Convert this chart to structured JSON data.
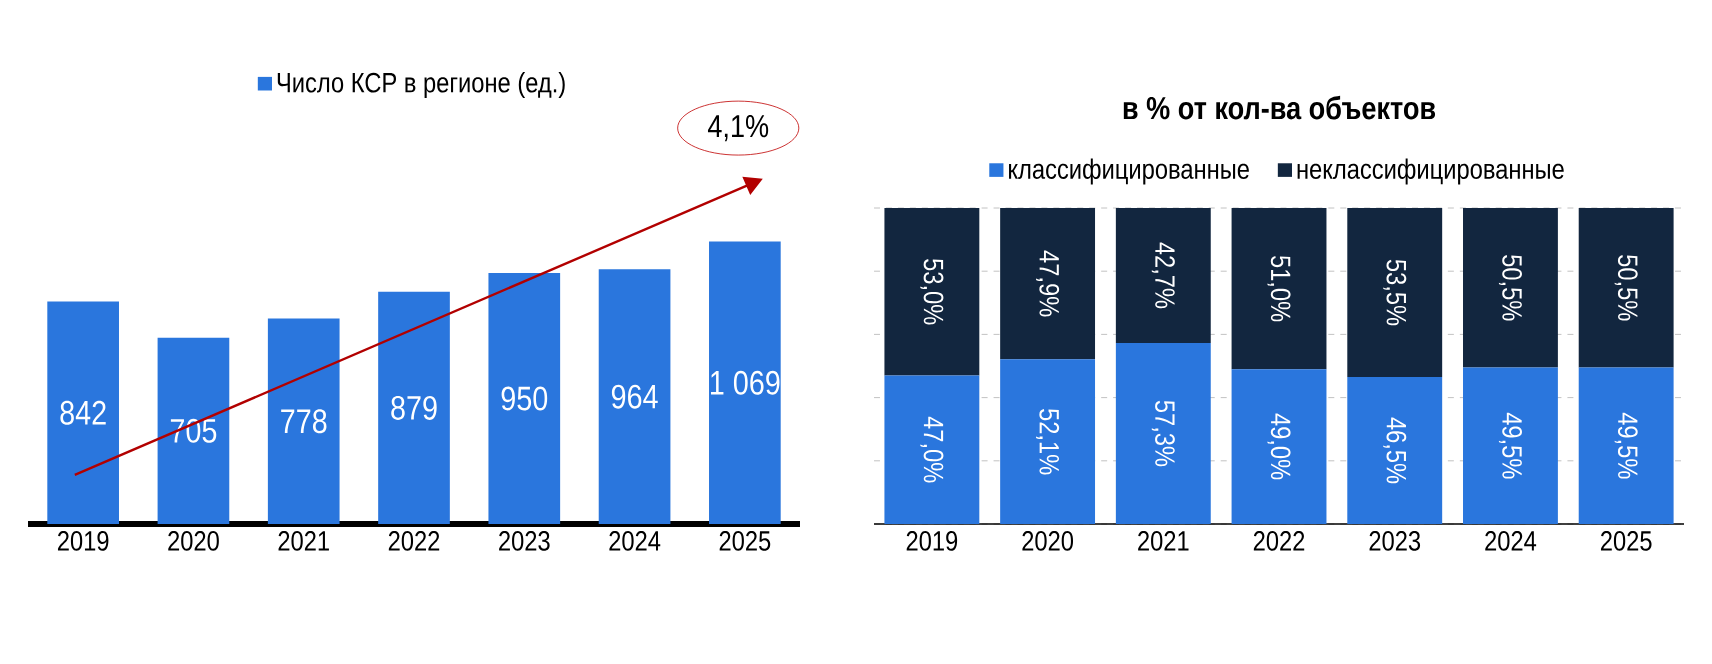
{
  "chart_data": [
    {
      "type": "bar",
      "categories": [
        "2019",
        "2020",
        "2021",
        "2022",
        "2023",
        "2024",
        "2025"
      ],
      "series": [
        {
          "name": "Число КСР в регионе (ед.)",
          "color": "#2a76dd",
          "values": [
            842,
            705,
            778,
            879,
            950,
            964,
            1069
          ],
          "value_labels": [
            "842",
            "705",
            "778",
            "879",
            "950",
            "964",
            "1 069"
          ]
        }
      ],
      "tick_labels": "x",
      "legend": "top",
      "annotations": [
        "4,1%"
      ]
    },
    {
      "type": "bar",
      "title": "в % от кол-ва объектов",
      "stacked": true,
      "categories": [
        "2019",
        "2020",
        "2021",
        "2022",
        "2023",
        "2024",
        "2025"
      ],
      "series": [
        {
          "name": "классифицированные",
          "color": "#2a76dd",
          "values": [
            47.0,
            52.1,
            57.3,
            49.0,
            46.5,
            49.5,
            49.5
          ],
          "value_labels": [
            "47,0%",
            "52,1%",
            "57,3%",
            "49,0%",
            "46,5%",
            "49,5%",
            "49,5%"
          ]
        },
        {
          "name": "неклассифицированные",
          "color": "#12263f",
          "values": [
            53.0,
            47.9,
            42.7,
            51.0,
            53.5,
            50.5,
            50.5
          ],
          "value_labels": [
            "53,0%",
            "47,9%",
            "42,7%",
            "51,0%",
            "53,5%",
            "50,5%",
            "50,5%"
          ]
        }
      ],
      "ylim": [
        0,
        100
      ],
      "yticks": [
        {
          "value": 0,
          "label": null
        },
        {
          "value": 20,
          "label": null
        },
        {
          "value": 40,
          "label": null
        },
        {
          "value": 60,
          "label": null
        },
        {
          "value": 80,
          "label": null
        },
        {
          "value": 100,
          "label": null
        }
      ],
      "tick_labels": "x",
      "grid": "y",
      "legend": "top"
    }
  ]
}
